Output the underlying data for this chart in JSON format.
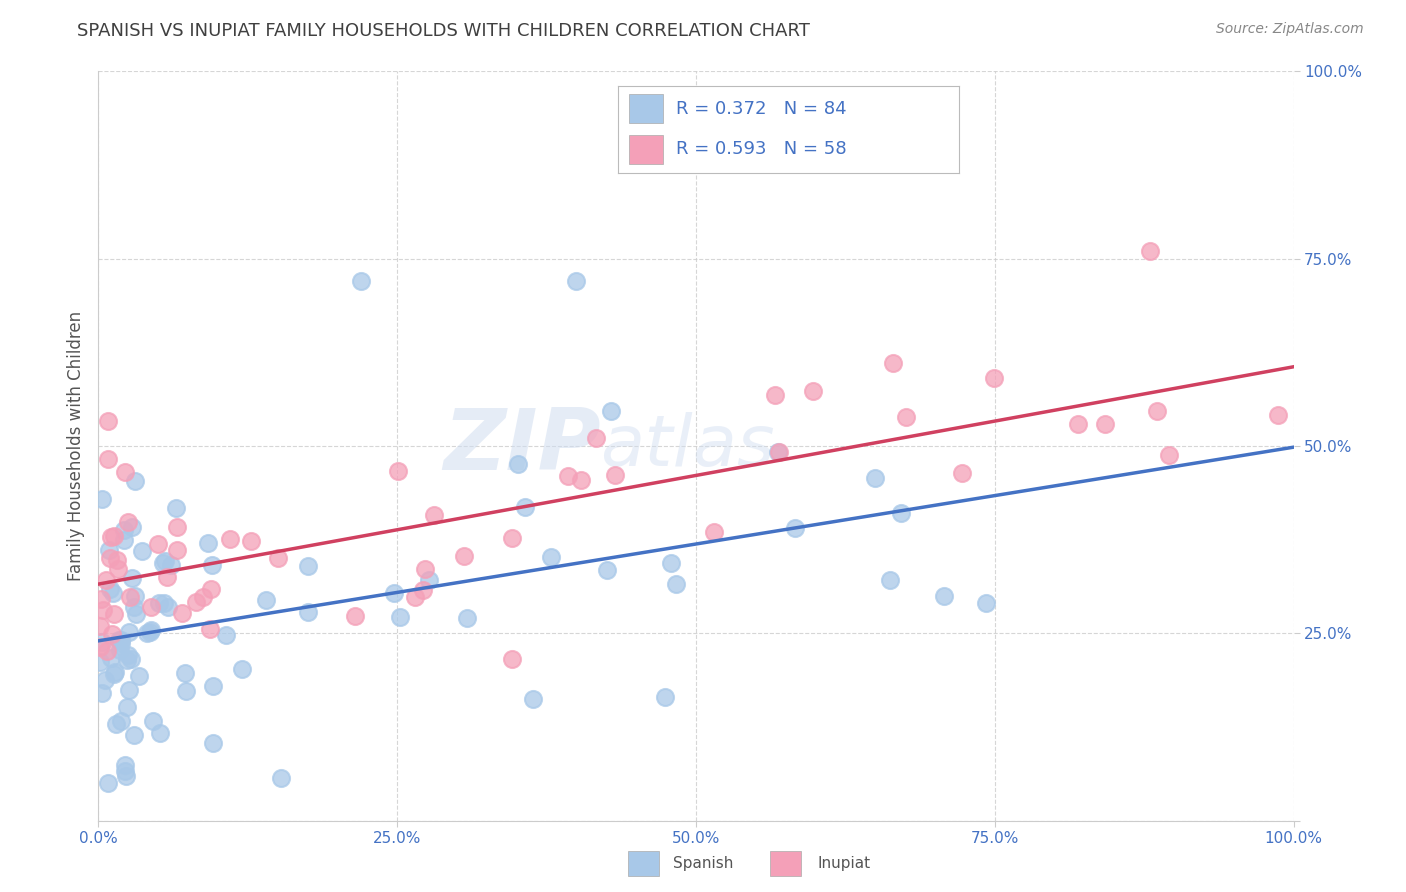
{
  "title": "SPANISH VS INUPIAT FAMILY HOUSEHOLDS WITH CHILDREN CORRELATION CHART",
  "source": "Source: ZipAtlas.com",
  "ylabel": "Family Households with Children",
  "watermark": "ZIPatlas",
  "spanish_R": 0.372,
  "spanish_N": 84,
  "inupiat_R": 0.593,
  "inupiat_N": 58,
  "spanish_color": "#a8c8e8",
  "inupiat_color": "#f4a0b8",
  "spanish_line_color": "#4472c4",
  "inupiat_line_color": "#d04060",
  "background_color": "#ffffff",
  "grid_color": "#cccccc",
  "title_color": "#404040",
  "tick_color": "#4472c4",
  "legend_text_color": "#4472c4"
}
